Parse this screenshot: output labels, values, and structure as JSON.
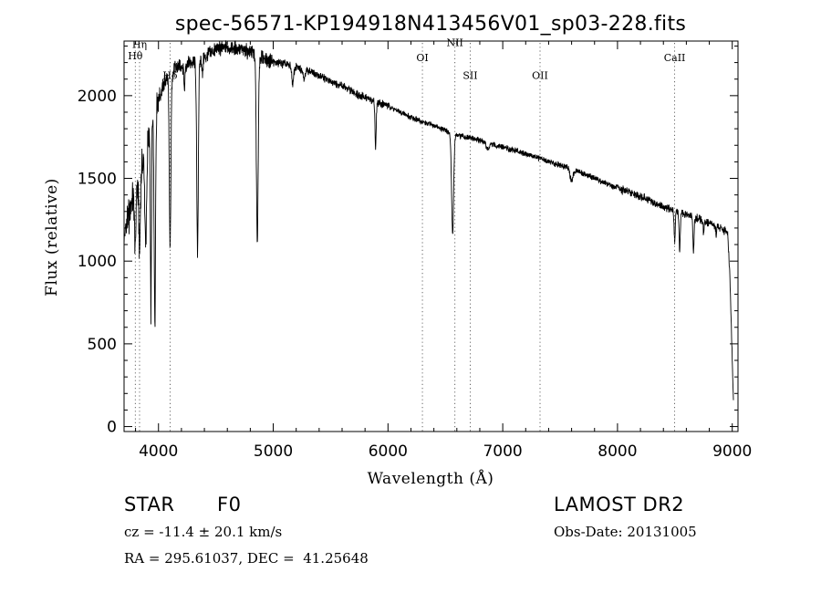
{
  "chart_data": {
    "type": "line",
    "title": "spec-56571-KP194918N413456V01_sp03-228.fits",
    "xlabel": "Wavelength (Å)",
    "ylabel": "Flux (relative)",
    "xlim": [
      3700,
      9050
    ],
    "ylim": [
      -30,
      2330
    ],
    "xticks": [
      4000,
      5000,
      6000,
      7000,
      8000,
      9000
    ],
    "yticks": [
      0,
      500,
      1000,
      1500,
      2000
    ],
    "grid": false,
    "continuum": [
      [
        3700,
        1150
      ],
      [
        3750,
        1300
      ],
      [
        3800,
        1450
      ],
      [
        3850,
        1550
      ],
      [
        3900,
        1700
      ],
      [
        3950,
        1850
      ],
      [
        4000,
        1980
      ],
      [
        4050,
        2080
      ],
      [
        4100,
        2130
      ],
      [
        4150,
        2160
      ],
      [
        4200,
        2180
      ],
      [
        4300,
        2200
      ],
      [
        4400,
        2230
      ],
      [
        4500,
        2280
      ],
      [
        4600,
        2290
      ],
      [
        4700,
        2280
      ],
      [
        4800,
        2270
      ],
      [
        4900,
        2230
      ],
      [
        5000,
        2200
      ],
      [
        5100,
        2190
      ],
      [
        5200,
        2170
      ],
      [
        5300,
        2150
      ],
      [
        5400,
        2120
      ],
      [
        5500,
        2090
      ],
      [
        5600,
        2060
      ],
      [
        5700,
        2020
      ],
      [
        5800,
        1990
      ],
      [
        5900,
        1960
      ],
      [
        6000,
        1940
      ],
      [
        6100,
        1900
      ],
      [
        6200,
        1870
      ],
      [
        6300,
        1840
      ],
      [
        6400,
        1820
      ],
      [
        6500,
        1790
      ],
      [
        6600,
        1760
      ],
      [
        6700,
        1745
      ],
      [
        6800,
        1730
      ],
      [
        6900,
        1705
      ],
      [
        7000,
        1690
      ],
      [
        7200,
        1650
      ],
      [
        7400,
        1600
      ],
      [
        7600,
        1560
      ],
      [
        7800,
        1500
      ],
      [
        8000,
        1440
      ],
      [
        8200,
        1390
      ],
      [
        8400,
        1330
      ],
      [
        8600,
        1280
      ],
      [
        8800,
        1230
      ],
      [
        8900,
        1200
      ],
      [
        8960,
        1170
      ],
      [
        8980,
        900
      ],
      [
        9000,
        400
      ],
      [
        9010,
        150
      ]
    ],
    "absorption_lines": [
      {
        "center": 3798,
        "depth": 380,
        "width": 6
      },
      {
        "center": 3835,
        "depth": 450,
        "width": 7
      },
      {
        "center": 3889,
        "depth": 600,
        "width": 7
      },
      {
        "center": 3934,
        "depth": 1100,
        "width": 5
      },
      {
        "center": 3968,
        "depth": 1250,
        "width": 6
      },
      {
        "center": 4101,
        "depth": 1050,
        "width": 7
      },
      {
        "center": 4226,
        "depth": 150,
        "width": 4
      },
      {
        "center": 4340,
        "depth": 1150,
        "width": 7
      },
      {
        "center": 4384,
        "depth": 100,
        "width": 4
      },
      {
        "center": 4861,
        "depth": 1120,
        "width": 8
      },
      {
        "center": 5170,
        "depth": 110,
        "width": 8
      },
      {
        "center": 5270,
        "depth": 60,
        "width": 6
      },
      {
        "center": 5892,
        "depth": 280,
        "width": 5
      },
      {
        "center": 6563,
        "depth": 610,
        "width": 9
      },
      {
        "center": 6870,
        "depth": 40,
        "width": 12
      },
      {
        "center": 7600,
        "depth": 70,
        "width": 14
      },
      {
        "center": 8498,
        "depth": 190,
        "width": 5
      },
      {
        "center": 8542,
        "depth": 240,
        "width": 5
      },
      {
        "center": 8662,
        "depth": 210,
        "width": 5
      },
      {
        "center": 8750,
        "depth": 70,
        "width": 4
      },
      {
        "center": 8860,
        "depth": 50,
        "width": 4
      }
    ],
    "line_markers": [
      {
        "label": "Hη",
        "wavelength": 3835,
        "label_y": 2290
      },
      {
        "label": "Hθ",
        "wavelength": 3798,
        "label_y": 2220
      },
      {
        "label": "Hδ",
        "wavelength": 4101,
        "label_y": 2100
      },
      {
        "label": "OI",
        "wavelength": 6300,
        "label_y": 2210
      },
      {
        "label": "NII",
        "wavelength": 6583,
        "label_y": 2300
      },
      {
        "label": "SII",
        "wavelength": 6717,
        "label_y": 2100
      },
      {
        "label": "OII",
        "wavelength": 7325,
        "label_y": 2100
      },
      {
        "label": "CaII",
        "wavelength": 8498,
        "label_y": 2210
      }
    ]
  },
  "info": {
    "object_class": "STAR",
    "subclass": "F0",
    "survey": "LAMOST DR2",
    "redshift": "cz = -11.4 ± 20.1 km/s",
    "obs_date": "Obs-Date: 20131005",
    "coordinates": "RA = 295.61037, DEC =  41.25648"
  }
}
